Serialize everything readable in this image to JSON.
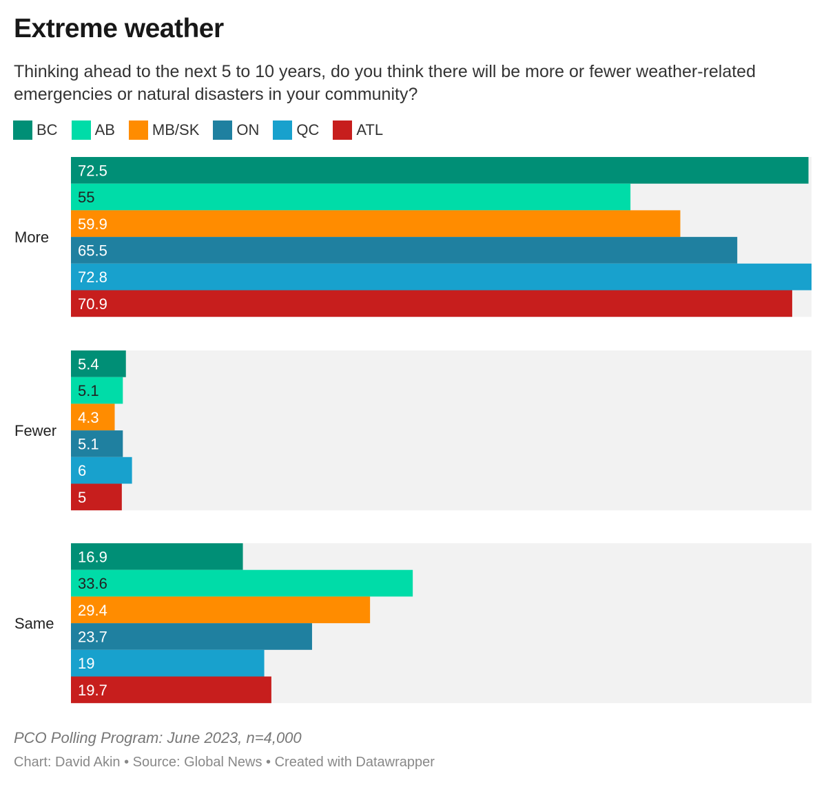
{
  "chart_data": {
    "type": "bar",
    "orientation": "horizontal",
    "title": "Extreme weather",
    "subtitle": "Thinking ahead to the next 5 to 10 years, do you think there will be more or fewer weather-related emergencies or natural disasters in your community?",
    "categories": [
      "More",
      "Fewer",
      "Same"
    ],
    "series": [
      {
        "name": "BC",
        "color": "#008f76",
        "values": [
          72.5,
          5.4,
          16.9
        ]
      },
      {
        "name": "AB",
        "color": "#00dca8",
        "values": [
          55,
          5.1,
          33.6
        ]
      },
      {
        "name": "MB/SK",
        "color": "#ff8c00",
        "values": [
          59.9,
          4.3,
          29.4
        ]
      },
      {
        "name": "ON",
        "color": "#1f80a0",
        "values": [
          65.5,
          5.1,
          23.7
        ]
      },
      {
        "name": "QC",
        "color": "#18a1cd",
        "values": [
          72.8,
          6,
          19
        ]
      },
      {
        "name": "ATL",
        "color": "#c71e1d",
        "values": [
          70.9,
          5,
          19.7
        ]
      }
    ],
    "xlim": [
      0,
      72.8
    ],
    "legend": "top-left",
    "grid": false
  },
  "footer": {
    "note": "PCO Polling Program: June 2023, n=4,000",
    "credit": "Chart: David Akin • Source: Global News • Created with Datawrapper"
  }
}
